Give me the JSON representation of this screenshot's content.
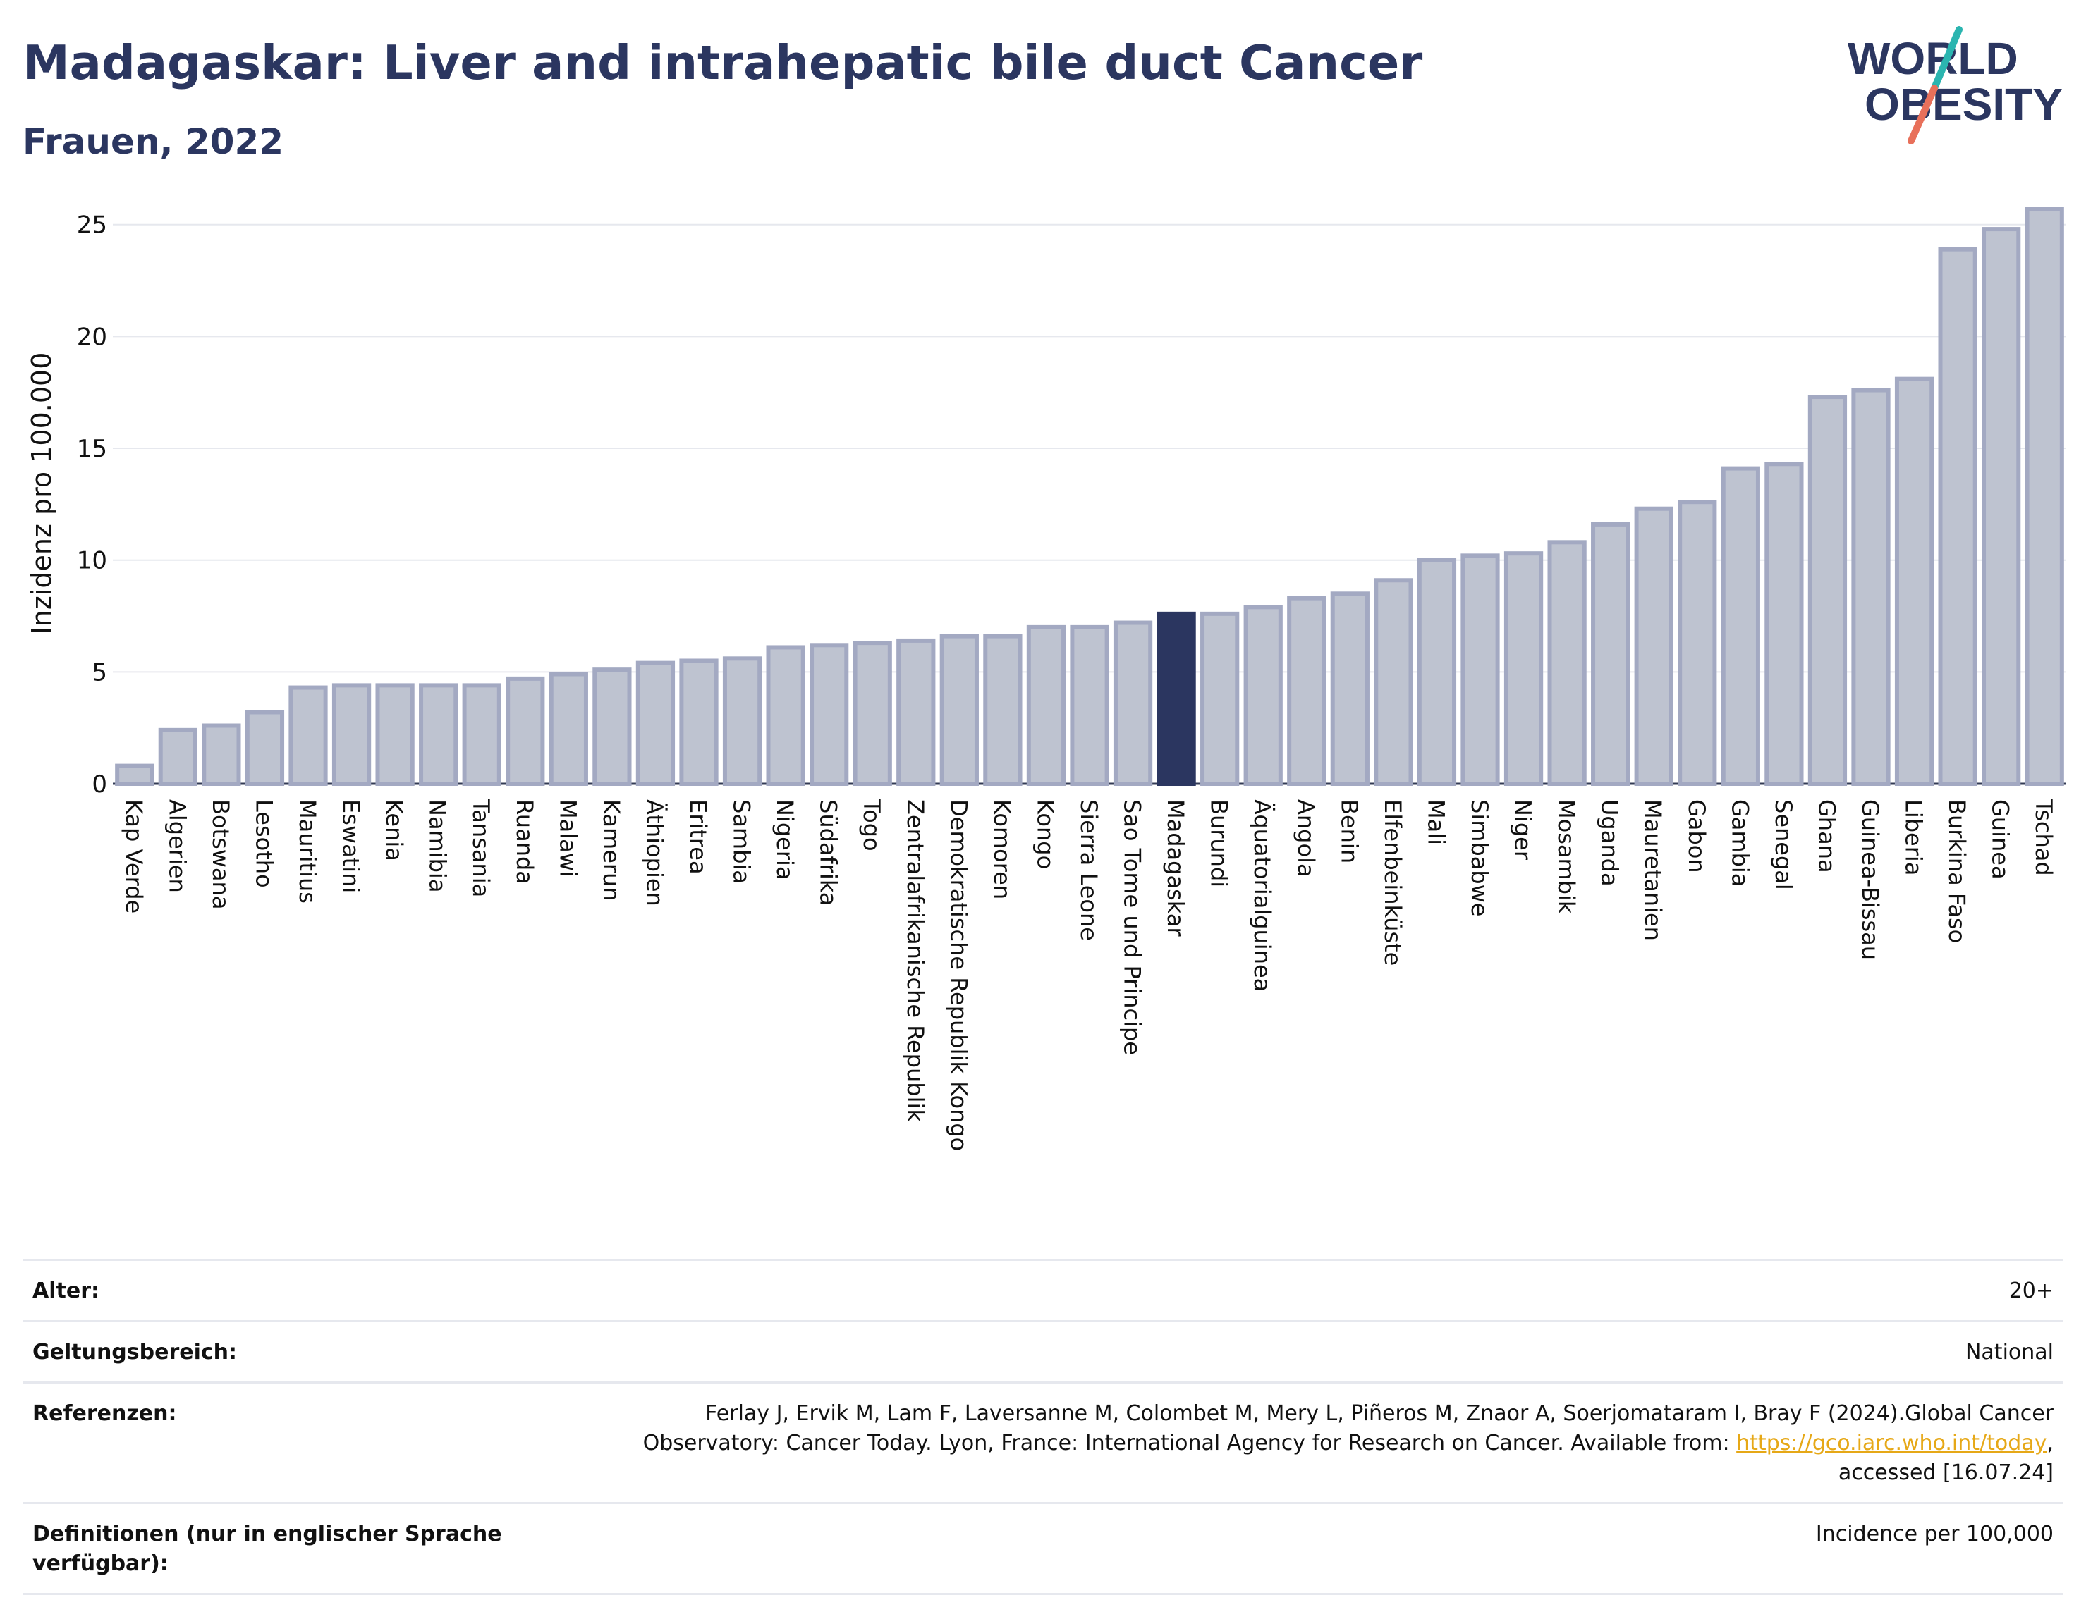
{
  "header": {
    "title": "Madagaskar: Liver and intrahepatic bile duct Cancer",
    "subtitle": "Frauen, 2022"
  },
  "logo": {
    "line1": "WORLD",
    "line2": "OBESITY",
    "colors": {
      "text": "#2b3660",
      "slash_top": "#2bb5b0",
      "slash_bottom": "#e8705a"
    }
  },
  "colors": {
    "bar_fill": "#bec3d0",
    "bar_stroke": "#a3a9c2",
    "highlight": "#2b3660",
    "grid": "#e6e8ee",
    "axis_text": "#111111"
  },
  "chart_data": {
    "type": "bar",
    "title": "",
    "xlabel": "",
    "ylabel": "Inzidenz pro 100.000",
    "ylim": [
      0,
      26
    ],
    "yticks": [
      0,
      5,
      10,
      15,
      20,
      25
    ],
    "grid": true,
    "highlight": "Madagaskar",
    "categories": [
      "Kap Verde",
      "Algerien",
      "Botswana",
      "Lesotho",
      "Mauritius",
      "Eswatini",
      "Kenia",
      "Namibia",
      "Tansania",
      "Ruanda",
      "Malawi",
      "Kamerun",
      "Äthiopien",
      "Eritrea",
      "Sambia",
      "Nigeria",
      "Südafrika",
      "Togo",
      "Zentralafrikanische Republik",
      "Demokratische Republik Kongo",
      "Komoren",
      "Kongo",
      "Sierra Leone",
      "Sao Tome und Principe",
      "Madagaskar",
      "Burundi",
      "Äquatorialguinea",
      "Angola",
      "Benin",
      "Elfenbeinküste",
      "Mali",
      "Simbabwe",
      "Niger",
      "Mosambik",
      "Uganda",
      "Mauretanien",
      "Gabon",
      "Gambia",
      "Senegal",
      "Ghana",
      "Guinea-Bissau",
      "Liberia",
      "Burkina Faso",
      "Guinea",
      "Tschad"
    ],
    "values": [
      0.8,
      2.4,
      2.6,
      3.2,
      4.3,
      4.4,
      4.4,
      4.4,
      4.4,
      4.7,
      4.9,
      5.1,
      5.4,
      5.5,
      5.6,
      6.1,
      6.2,
      6.3,
      6.4,
      6.6,
      6.6,
      7.0,
      7.0,
      7.2,
      7.6,
      7.6,
      7.9,
      8.3,
      8.5,
      9.1,
      10.0,
      10.2,
      10.3,
      10.8,
      11.6,
      12.3,
      12.6,
      14.1,
      14.3,
      17.3,
      17.6,
      18.1,
      23.9,
      24.8,
      25.7
    ]
  },
  "info": {
    "age_label": "Alter:",
    "age_value": "20+",
    "scope_label": "Geltungsbereich:",
    "scope_value": "National",
    "ref_label": "Referenzen:",
    "ref_text": "Ferlay J, Ervik M, Lam F, Laversanne M, Colombet M, Mery L, Piñeros M, Znaor A, Soerjomataram I, Bray F (2024).Global Cancer Observatory: Cancer Today. Lyon, France: International Agency for Research on Cancer. Available from:",
    "ref_link": "https://gco.iarc.who.int/today",
    "ref_suffix": ", accessed [16.07.24]",
    "def_label": "Definitionen (nur in englischer Sprache verfügbar):",
    "def_value": "Incidence per 100,000"
  }
}
